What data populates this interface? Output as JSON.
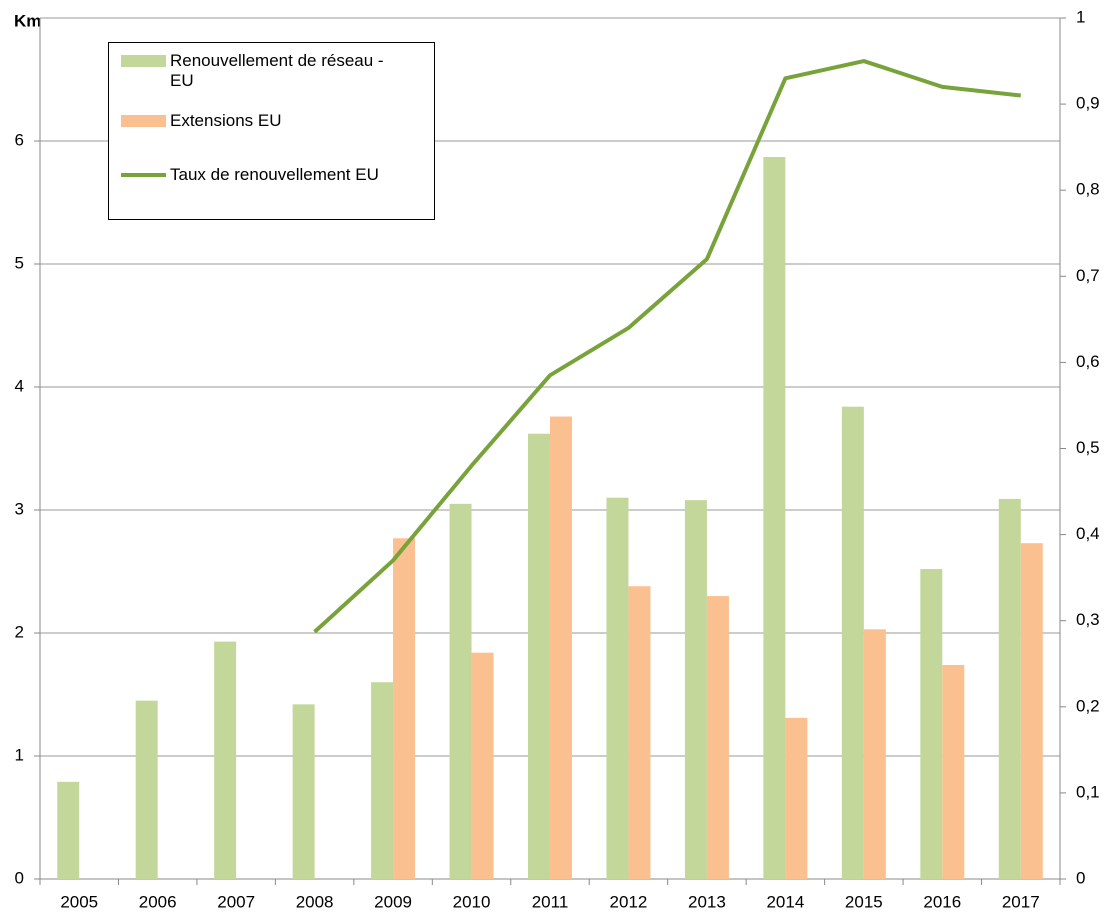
{
  "chart_data": {
    "type": "bar",
    "y_label": "Km",
    "categories": [
      "2005",
      "2006",
      "2007",
      "2008",
      "2009",
      "2010",
      "2011",
      "2012",
      "2013",
      "2014",
      "2015",
      "2016",
      "2017"
    ],
    "series": [
      {
        "name": "Renouvellement de réseau - EU",
        "type": "bar",
        "color": "#c4d79b",
        "values": [
          0.79,
          1.45,
          1.93,
          1.42,
          1.6,
          3.05,
          3.62,
          3.1,
          3.08,
          5.87,
          3.84,
          2.52,
          3.09
        ]
      },
      {
        "name": "Extensions EU",
        "type": "bar",
        "color": "#fac090",
        "values": [
          null,
          null,
          null,
          null,
          2.77,
          1.84,
          3.76,
          2.38,
          2.3,
          1.31,
          2.03,
          1.74,
          2.73
        ]
      },
      {
        "name": "Taux de renouvellement EU",
        "type": "line",
        "axis": "y2",
        "color": "#77a33a",
        "values": [
          null,
          null,
          null,
          0.287,
          0.37,
          0.48,
          0.585,
          0.64,
          0.72,
          0.93,
          0.95,
          0.92,
          0.91
        ]
      }
    ],
    "ylim": [
      0,
      7
    ],
    "yticks": [
      0,
      1,
      2,
      3,
      4,
      5,
      6
    ],
    "y2lim": [
      0,
      1
    ],
    "y2ticks": [
      0,
      {
        "value": 0.1,
        "label": "0,1"
      },
      {
        "value": 0.2,
        "label": "0,2"
      },
      {
        "value": 0.3,
        "label": "0,3"
      },
      {
        "value": 0.4,
        "label": "0,4"
      },
      {
        "value": 0.5,
        "label": "0,5"
      },
      {
        "value": 0.6,
        "label": "0,6"
      },
      {
        "value": 0.7,
        "label": "0,7"
      },
      {
        "value": 0.8,
        "label": "0,8"
      },
      {
        "value": 0.9,
        "label": "0,9"
      },
      1
    ],
    "grid": true
  }
}
